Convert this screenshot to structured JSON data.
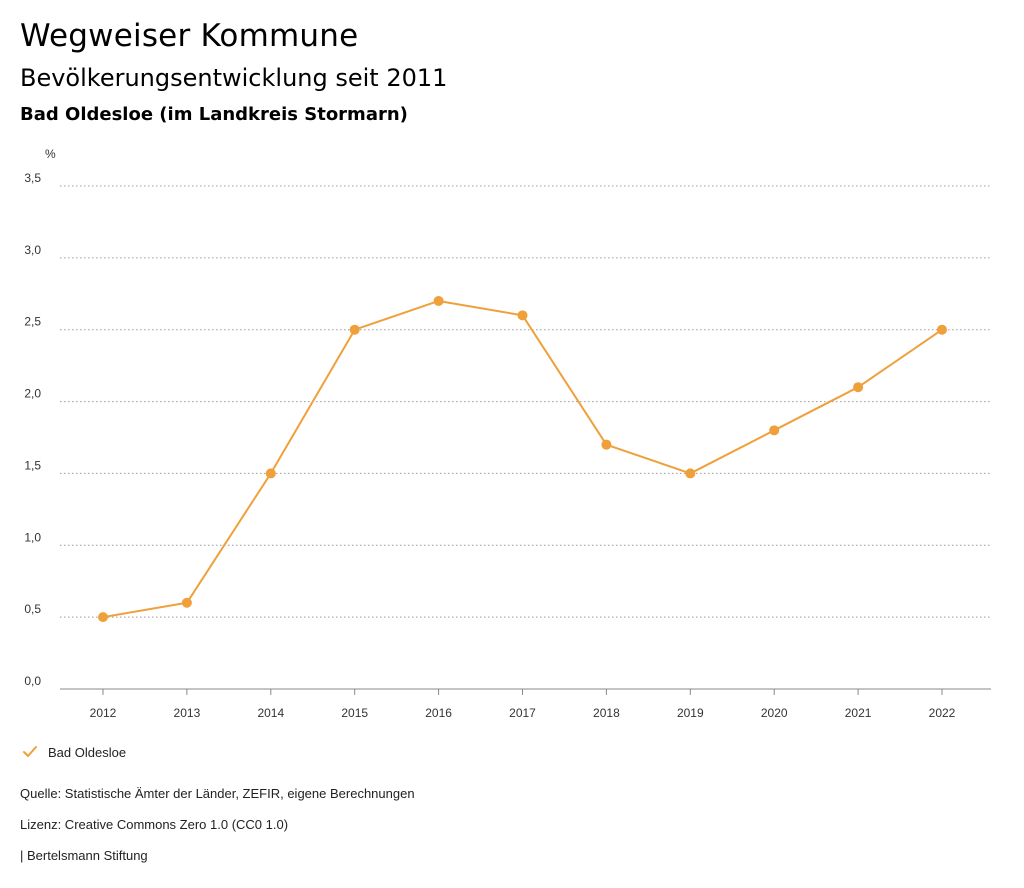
{
  "header": {
    "title": "Wegweiser Kommune",
    "subtitle": "Bevölkerungsentwicklung seit 2011",
    "region": "Bad Oldesloe (im Landkreis Stormarn)"
  },
  "chart_data": {
    "type": "line",
    "ylabel": "%",
    "xlabel": "",
    "ylim": [
      0,
      3.5
    ],
    "yticks": [
      "0,0",
      "0,5",
      "1,0",
      "1,5",
      "2,0",
      "2,5",
      "3,0",
      "3,5"
    ],
    "categories": [
      "2012",
      "2013",
      "2014",
      "2015",
      "2016",
      "2017",
      "2018",
      "2019",
      "2020",
      "2021",
      "2022"
    ],
    "series": [
      {
        "name": "Bad Oldesloe",
        "color": "#f0a03a",
        "values": [
          0.5,
          0.6,
          1.5,
          2.5,
          2.7,
          2.6,
          1.7,
          1.5,
          1.8,
          2.1,
          2.5
        ]
      }
    ],
    "grid": true,
    "legend": "bottom-left"
  },
  "footer": {
    "source": "Quelle: Statistische Ämter der Länder, ZEFIR, eigene Berechnungen",
    "license": "Lizenz: Creative Commons Zero 1.0 (CC0 1.0)",
    "publisher": "| Bertelsmann Stiftung"
  }
}
